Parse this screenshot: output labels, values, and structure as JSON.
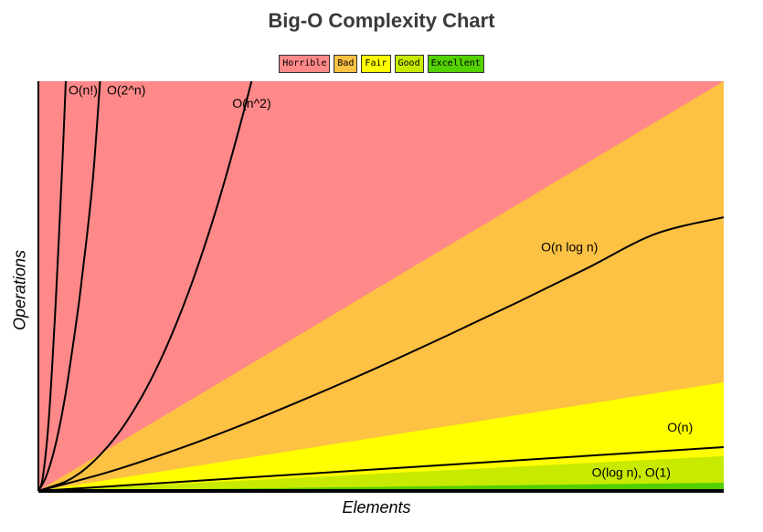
{
  "chart_data": {
    "type": "area",
    "title": "Big-O Complexity Chart",
    "xlabel": "Elements",
    "ylabel": "Operations",
    "xlim": [
      0,
      100
    ],
    "ylim": [
      0,
      100
    ],
    "grid": false,
    "legend_position": "top-center",
    "legend": [
      {
        "label": "Horrible",
        "color": "#ff8989"
      },
      {
        "label": "Bad",
        "color": "#fdc143"
      },
      {
        "label": "Fair",
        "color": "#ffff00"
      },
      {
        "label": "Good",
        "color": "#c8ea00"
      },
      {
        "label": "Excellent",
        "color": "#53d000"
      }
    ],
    "regions": [
      {
        "name": "Horrible",
        "color": "#ff8989",
        "upper": [
          [
            0,
            100
          ],
          [
            100,
            100
          ]
        ]
      },
      {
        "name": "Bad",
        "color": "#fdc143",
        "upper": [
          [
            0,
            0
          ],
          [
            100,
            100
          ]
        ]
      },
      {
        "name": "Fair",
        "color": "#ffff00",
        "upper": [
          [
            0,
            0
          ],
          [
            100,
            26.5
          ]
        ]
      },
      {
        "name": "Good",
        "color": "#c8ea00",
        "upper": [
          [
            0,
            0
          ],
          [
            100,
            8.5
          ]
        ]
      },
      {
        "name": "Excellent",
        "color": "#53d000",
        "upper": [
          [
            0,
            0
          ],
          [
            100,
            2
          ]
        ]
      }
    ],
    "series": [
      {
        "name": "O(n!)",
        "label_x": 4.4,
        "label_y": 96.8,
        "points": [
          [
            0,
            0
          ],
          [
            0.5,
            2
          ],
          [
            1,
            8
          ],
          [
            1.5,
            17
          ],
          [
            2,
            30
          ],
          [
            2.5,
            45
          ],
          [
            3,
            62
          ],
          [
            3.5,
            80
          ],
          [
            4,
            100
          ]
        ]
      },
      {
        "name": "O(2^n)",
        "label_x": 10,
        "label_y": 96.8,
        "points": [
          [
            0,
            0
          ],
          [
            1,
            3
          ],
          [
            2,
            8
          ],
          [
            3,
            15
          ],
          [
            4,
            24
          ],
          [
            5,
            35
          ],
          [
            6,
            47
          ],
          [
            7,
            61
          ],
          [
            8,
            77
          ],
          [
            9,
            100
          ]
        ]
      },
      {
        "name": "O(n^2)",
        "label_x": 28.3,
        "label_y": 93.5,
        "points": [
          [
            0,
            0
          ],
          [
            2,
            1.1
          ],
          [
            4,
            2.3
          ],
          [
            6,
            4.3
          ],
          [
            8,
            7.1
          ],
          [
            10,
            10.6
          ],
          [
            12,
            14.8
          ],
          [
            14,
            19.9
          ],
          [
            16,
            25.8
          ],
          [
            18,
            32.6
          ],
          [
            20,
            40.3
          ],
          [
            22,
            48.9
          ],
          [
            24,
            58.5
          ],
          [
            26,
            69.0
          ],
          [
            28,
            80.5
          ],
          [
            30,
            92.8
          ],
          [
            31.1,
            100
          ]
        ]
      },
      {
        "name": "O(n log n)",
        "label_x": 77.5,
        "label_y": 58.5,
        "points": [
          [
            0,
            0
          ],
          [
            10,
            4.5
          ],
          [
            20,
            10
          ],
          [
            30,
            16.3
          ],
          [
            40,
            23.2
          ],
          [
            50,
            30.5
          ],
          [
            60,
            38.2
          ],
          [
            70,
            46.1
          ],
          [
            80,
            54.3
          ],
          [
            90,
            62.7
          ],
          [
            100,
            66.8
          ]
        ]
      },
      {
        "name": "O(n)",
        "label_x": 95.5,
        "label_y": 14.5,
        "points": [
          [
            0,
            0
          ],
          [
            100,
            10.7
          ]
        ]
      },
      {
        "name": "O(log n), O(1)",
        "label_x": 86.5,
        "label_y": 3.5,
        "points": [
          [
            0,
            0.3
          ],
          [
            100,
            0.3
          ]
        ]
      }
    ]
  }
}
